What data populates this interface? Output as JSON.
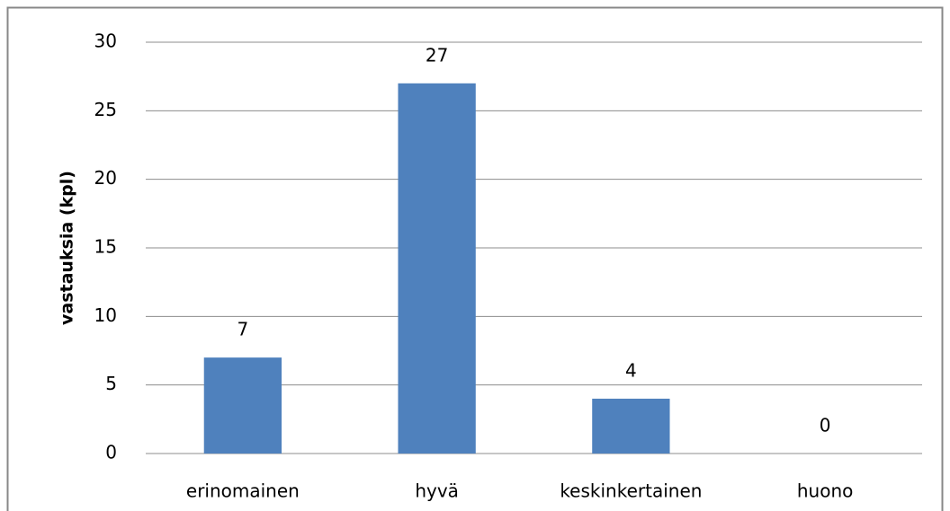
{
  "chart_data": {
    "type": "bar",
    "y_label": "vastauksia (kpl)",
    "categories": [
      "erinomainen",
      "hyvä",
      "keskinkertainen",
      "huono"
    ],
    "values": [
      7,
      27,
      4,
      0
    ],
    "color": "#4f81bd",
    "ylim": [
      0,
      30
    ],
    "yticks": [
      0,
      5,
      10,
      15,
      20,
      25,
      30
    ],
    "grid": true
  }
}
